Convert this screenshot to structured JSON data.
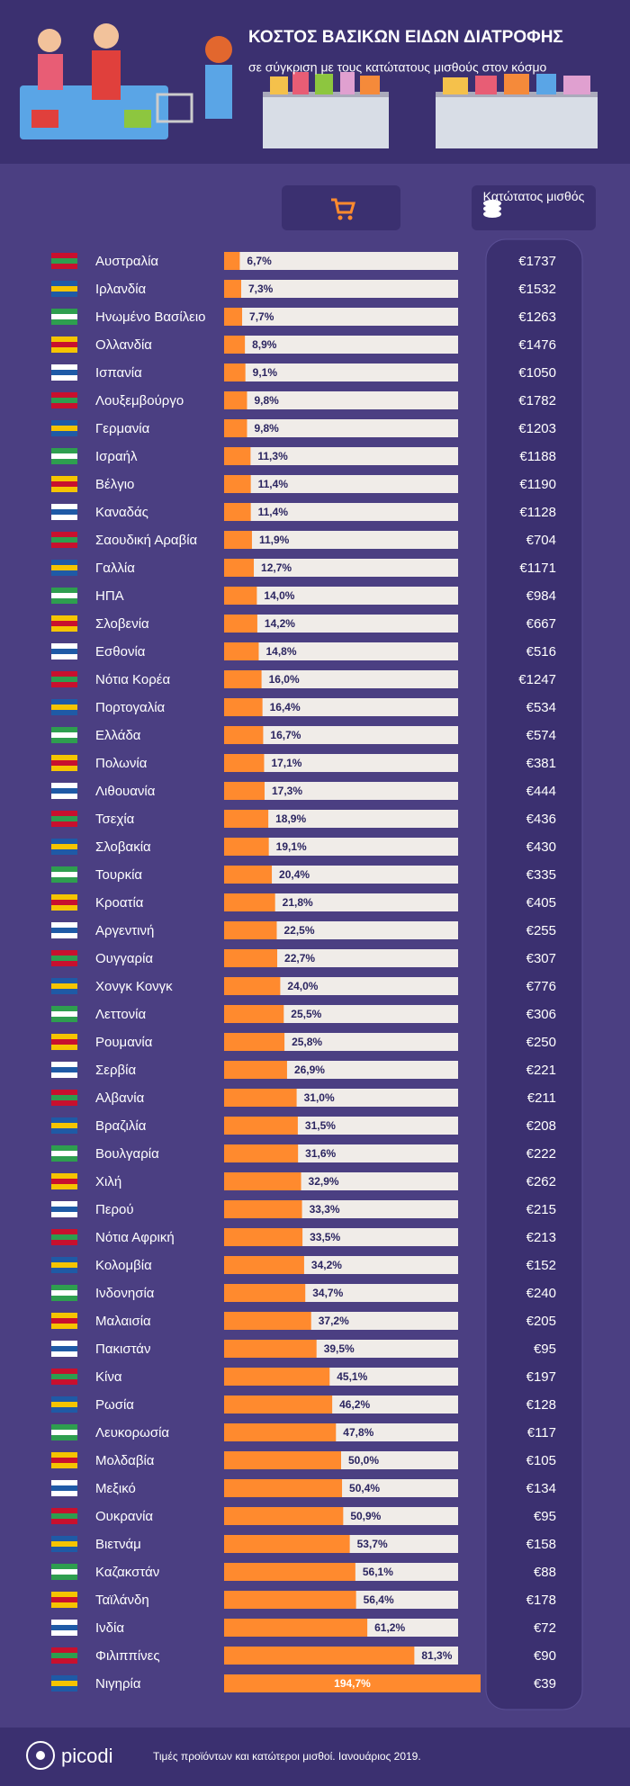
{
  "chart_data": {
    "type": "bar",
    "orientation": "horizontal",
    "title": "ΚΟΣΤΟΣ ΒΑΣΙΚΩΝ ΕΙΔΩΝ ΔΙΑΤΡΟΦΗΣ",
    "subtitle": "σε σύγκριση με τους κατώτατους μισθούς στον κόσμο",
    "xlim": [
      0,
      100
    ],
    "categories": [
      "Αυστραλία",
      "Ιρλανδία",
      "Ηνωμένο Βασίλειο",
      "Ολλανδία",
      "Ισπανία",
      "Λουξεμβούργο",
      "Γερμανία",
      "Ισραήλ",
      "Βέλγιο",
      "Καναδάς",
      "Σαουδική Αραβία",
      "Γαλλία",
      "ΗΠΑ",
      "Σλοβενία",
      "Εσθονία",
      "Νότια Κορέα",
      "Πορτογαλία",
      "Ελλάδα",
      "Πολωνία",
      "Λιθουανία",
      "Τσεχία",
      "Σλοβακία",
      "Τουρκία",
      "Κροατία",
      "Αργεντινή",
      "Ουγγαρία",
      "Χονγκ Κονγκ",
      "Λεττονία",
      "Ρουμανία",
      "Σερβία",
      "Αλβανία",
      "Βραζιλία",
      "Βουλγαρία",
      "Χιλή",
      "Περού",
      "Νότια Αφρική",
      "Κολομβία",
      "Ινδονησία",
      "Μαλαισία",
      "Πακιστάν",
      "Κίνα",
      "Ρωσία",
      "Λευκορωσία",
      "Μολδαβία",
      "Μεξικό",
      "Ουκρανία",
      "Βιετνάμ",
      "Καζακστάν",
      "Ταϊλάνδη",
      "Ινδία",
      "Φιλιππίνες",
      "Νιγηρία"
    ],
    "series": [
      {
        "color": "#ff8a2e",
        "values": [
          6.7,
          7.3,
          7.7,
          8.9,
          9.1,
          9.8,
          9.8,
          11.3,
          11.4,
          11.4,
          11.9,
          12.7,
          14.0,
          14.2,
          14.8,
          16.0,
          16.4,
          16.7,
          17.1,
          17.3,
          18.9,
          19.1,
          20.4,
          21.8,
          22.5,
          22.7,
          24.0,
          25.5,
          25.8,
          26.9,
          31.0,
          31.5,
          31.6,
          32.9,
          33.3,
          33.5,
          34.2,
          34.7,
          37.2,
          39.5,
          45.1,
          46.2,
          47.8,
          50.0,
          50.4,
          50.9,
          53.7,
          56.1,
          56.4,
          61.2,
          81.3,
          194.7
        ],
        "value_labels": [
          "6,7%",
          "7,3%",
          "7,7%",
          "8,9%",
          "9,1%",
          "9,8%",
          "9,8%",
          "11,3%",
          "11,4%",
          "11,4%",
          "11,9%",
          "12,7%",
          "14,0%",
          "14,2%",
          "14,8%",
          "16,0%",
          "16,4%",
          "16,7%",
          "17,1%",
          "17,3%",
          "18,9%",
          "19,1%",
          "20,4%",
          "21,8%",
          "22,5%",
          "22,7%",
          "24,0%",
          "25,5%",
          "25,8%",
          "26,9%",
          "31,0%",
          "31,5%",
          "31,6%",
          "32,9%",
          "33,3%",
          "33,5%",
          "34,2%",
          "34,7%",
          "37,2%",
          "39,5%",
          "45,1%",
          "46,2%",
          "47,8%",
          "50,0%",
          "50,4%",
          "50,9%",
          "53,7%",
          "56,1%",
          "56,4%",
          "61,2%",
          "81,3%",
          "194,7%"
        ]
      },
      {
        "name": "Κατώτατος μισθός",
        "values": [
          1737,
          1532,
          1263,
          1476,
          1050,
          1782,
          1203,
          1188,
          1190,
          1128,
          704,
          1171,
          984,
          667,
          516,
          1247,
          534,
          574,
          381,
          444,
          436,
          430,
          335,
          405,
          255,
          307,
          776,
          306,
          250,
          221,
          211,
          208,
          222,
          262,
          215,
          213,
          152,
          240,
          205,
          95,
          197,
          128,
          117,
          105,
          134,
          95,
          158,
          88,
          178,
          72,
          90,
          39
        ],
        "value_labels": [
          "€1737",
          "€1532",
          "€1263",
          "€1476",
          "€1050",
          "€1782",
          "€1203",
          "€1188",
          "€1190",
          "€1128",
          "€704",
          "€1171",
          "€984",
          "€667",
          "€516",
          "€1247",
          "€534",
          "€574",
          "€381",
          "€444",
          "€436",
          "€430",
          "€335",
          "€405",
          "€255",
          "€307",
          "€776",
          "€306",
          "€250",
          "€221",
          "€211",
          "€208",
          "€222",
          "€262",
          "€215",
          "€213",
          "€152",
          "€240",
          "€205",
          "€95",
          "€197",
          "€128",
          "€117",
          "€105",
          "€134",
          "€95",
          "€158",
          "€88",
          "€178",
          "€72",
          "€90",
          "€39"
        ]
      }
    ]
  },
  "footer": {
    "brand": "picodi",
    "note": "Τιμές προϊόντων και κατώτεροι μισθοί. Ιανουάριος 2019."
  }
}
